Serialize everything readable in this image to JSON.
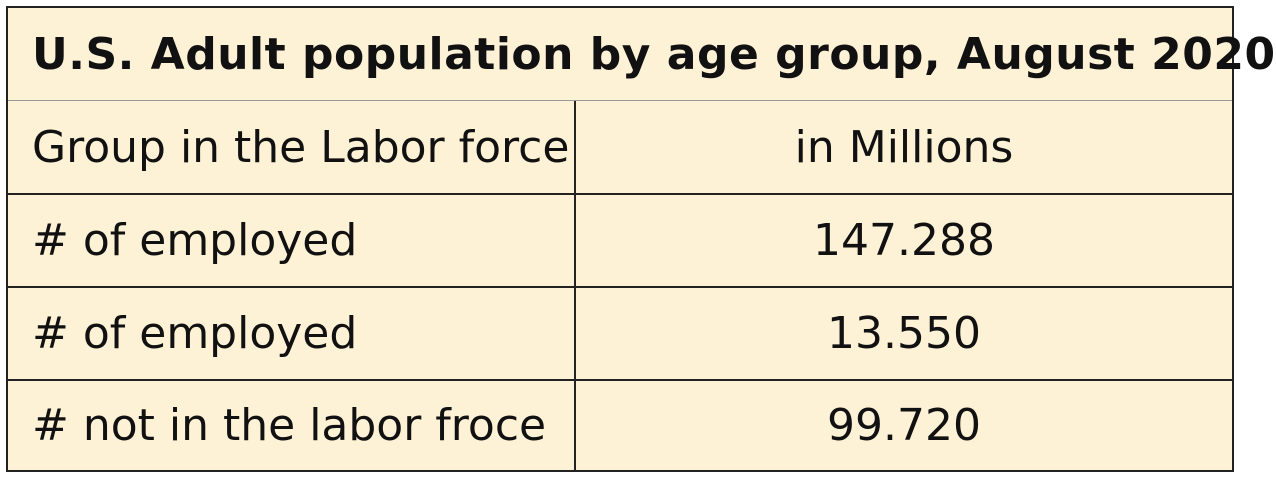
{
  "table": {
    "title": "U.S. Adult population by age group, August 2020",
    "header": [
      "Group in the Labor force",
      "in Millions"
    ],
    "rows": [
      {
        "label": "# of employed",
        "value": "147.288"
      },
      {
        "label": "# of employed",
        "value": "13.550"
      },
      {
        "label": "# not in the labor froce",
        "value": "99.720"
      }
    ]
  },
  "colors": {
    "background": "#fdf1d6",
    "border": "#222222"
  }
}
